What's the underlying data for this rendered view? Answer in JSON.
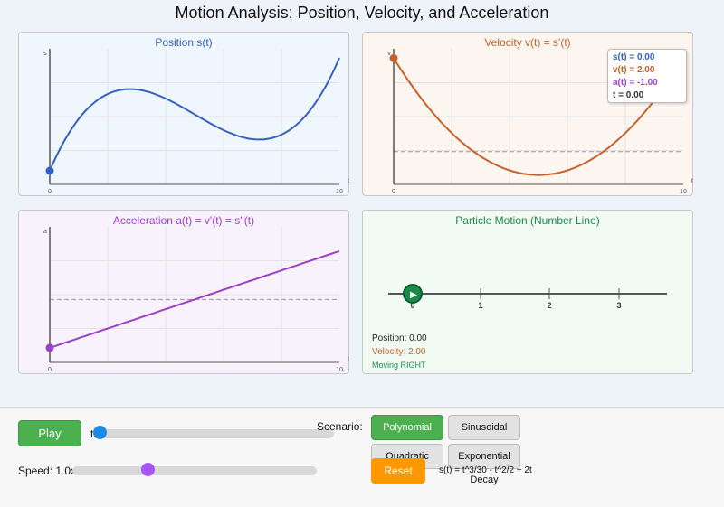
{
  "title": "Motion Analysis: Position, Velocity, and Acceleration",
  "panels": {
    "position": {
      "title": "Position s(t)",
      "ylabel": "s",
      "xlabel": "t",
      "ticks": [
        "0",
        "10"
      ]
    },
    "velocity": {
      "title": "Velocity v(t) = s'(t)",
      "ylabel": "v",
      "xlabel": "t",
      "ticks": [
        "0",
        "10"
      ]
    },
    "acceleration": {
      "title": "Acceleration a(t) = v'(t) = s''(t)",
      "ylabel": "a",
      "xlabel": "t",
      "ticks": [
        "0",
        "10"
      ]
    },
    "particle": {
      "title": "Particle Motion (Number Line)",
      "ticks": [
        "0",
        "1",
        "2",
        "3"
      ],
      "position_text": "Position: 0.00",
      "velocity_text": "Velocity: 2.00",
      "direction_text": "Moving RIGHT",
      "play_glyph": "▶"
    }
  },
  "readout": {
    "s": "s(t) = 0.00",
    "v": "v(t) = 2.00",
    "a": "a(t) = -1.00",
    "t": "t = 0.00"
  },
  "controls": {
    "play_label": "Play",
    "time_label": "t",
    "speed_label": "Speed: 1.0x",
    "scenario_label": "Scenario:",
    "scenarios": [
      "Polynomial",
      "Sinusoidal",
      "Quadratic",
      "Exponential Decay"
    ],
    "selected_scenario": "Polynomial",
    "reset_label": "Reset",
    "formula": "s(t) = t^3/30 - t^2/2 + 2t",
    "time_value": 0,
    "speed_value": 1.0,
    "speed_min": 0.1,
    "speed_max": 3.0
  },
  "colors": {
    "position": "#3461c1",
    "velocity": "#c8622a",
    "acceleration": "#9b3fcf",
    "particle": "#1a8a4a",
    "button": "#4caf50",
    "reset": "#ff9800"
  },
  "chart_data": [
    {
      "type": "line",
      "title": "Position s(t)",
      "xlabel": "t",
      "ylabel": "s",
      "xlim": [
        0,
        10
      ],
      "function": "t^3/30 - t^2/2 + 2t",
      "x": [
        0,
        1,
        2,
        3,
        4,
        5,
        6,
        7,
        8,
        9,
        10
      ],
      "values": [
        0,
        1.53,
        2.27,
        2.4,
        2.13,
        1.67,
        1.2,
        0.93,
        1.07,
        1.8,
        3.33
      ]
    },
    {
      "type": "line",
      "title": "Velocity v(t) = s'(t)",
      "xlabel": "t",
      "ylabel": "v",
      "xlim": [
        0,
        10
      ],
      "function": "t^2/10 - t + 2",
      "x": [
        0,
        1,
        2,
        3,
        4,
        5,
        6,
        7,
        8,
        9,
        10
      ],
      "values": [
        2,
        1.1,
        0.4,
        -0.1,
        -0.4,
        -0.5,
        -0.4,
        -0.1,
        0.4,
        1.1,
        2
      ]
    },
    {
      "type": "line",
      "title": "Acceleration a(t) = v'(t) = s''(t)",
      "xlabel": "t",
      "ylabel": "a",
      "xlim": [
        0,
        10
      ],
      "function": "t/5 - 1",
      "x": [
        0,
        10
      ],
      "values": [
        -1,
        1
      ]
    }
  ]
}
